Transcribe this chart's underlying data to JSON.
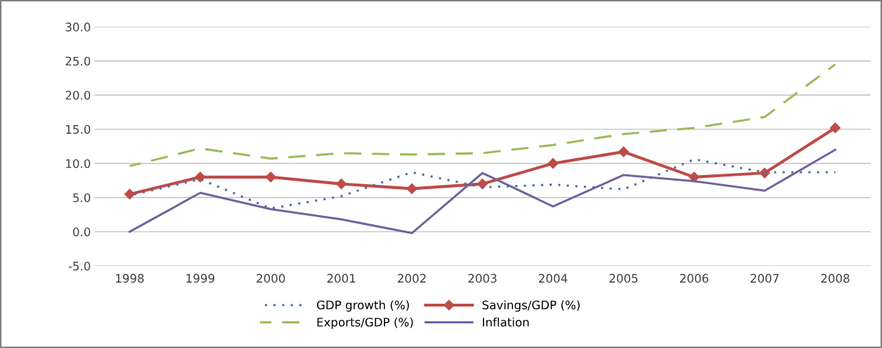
{
  "chart_data": {
    "type": "line",
    "categories": [
      "1998",
      "1999",
      "2000",
      "2001",
      "2002",
      "2003",
      "2004",
      "2005",
      "2006",
      "2007",
      "2008"
    ],
    "series": [
      {
        "name": "GDP growth (%)",
        "color": "#4a6fa5",
        "line_style": "dotted",
        "marker": "none",
        "values": [
          5.3,
          7.7,
          3.4,
          5.2,
          8.7,
          6.5,
          6.9,
          6.2,
          10.6,
          8.7,
          8.7
        ]
      },
      {
        "name": "Savings/GDP (%)",
        "color": "#be4b48",
        "line_style": "solid",
        "marker": "diamond",
        "values": [
          5.5,
          8.0,
          8.0,
          7.0,
          6.3,
          7.0,
          10.0,
          11.7,
          8.0,
          8.6,
          15.2
        ]
      },
      {
        "name": "Exports/GDP (%)",
        "color": "#9bbb59",
        "line_style": "dashed",
        "marker": "none",
        "values": [
          9.6,
          12.2,
          10.7,
          11.5,
          11.3,
          11.5,
          12.7,
          14.3,
          15.2,
          16.8,
          24.5
        ]
      },
      {
        "name": "Inflation",
        "color": "#7064a0",
        "line_style": "solid",
        "marker": "none",
        "values": [
          0.0,
          5.7,
          3.3,
          1.8,
          -0.2,
          8.6,
          3.7,
          8.3,
          7.4,
          6.0,
          12.0
        ]
      }
    ],
    "ylim": [
      -5,
      30
    ],
    "yticks": [
      {
        "value": -5,
        "label": "-5.0"
      },
      {
        "value": 0,
        "label": "0.0"
      },
      {
        "value": 5,
        "label": "5.0"
      },
      {
        "value": 10,
        "label": "10.0"
      },
      {
        "value": 15,
        "label": "15.0"
      },
      {
        "value": 20,
        "label": "20.0"
      },
      {
        "value": 25,
        "label": "25.0"
      },
      {
        "value": 30,
        "label": "30.0"
      }
    ],
    "grid": "y",
    "legend": "bottom"
  }
}
